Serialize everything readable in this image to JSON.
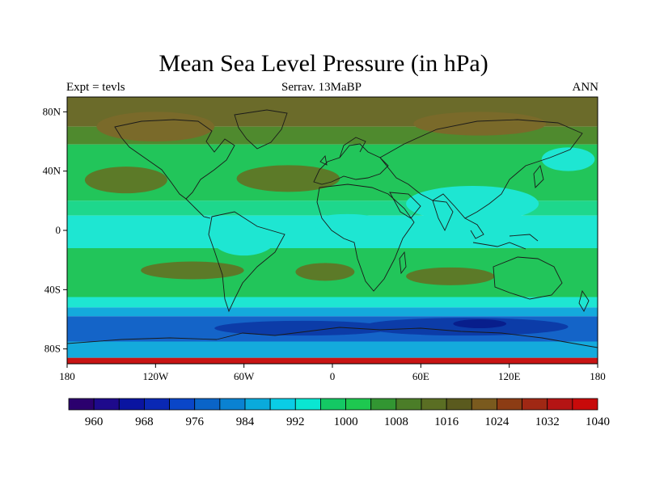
{
  "title": "Mean Sea Level Pressure (in hPa)",
  "subtitle_left": "Expt = tevls",
  "subtitle_center": "Serrav.  13MaBP",
  "subtitle_right": "ANN",
  "map": {
    "projection": "cylindrical-equidistant",
    "lon_range": [
      -180,
      180
    ],
    "lat_range": [
      -90,
      90
    ],
    "lon_ticks": [
      {
        "value": -180,
        "label": "180"
      },
      {
        "value": -120,
        "label": "120W"
      },
      {
        "value": -60,
        "label": "60W"
      },
      {
        "value": 0,
        "label": "0"
      },
      {
        "value": 60,
        "label": "60E"
      },
      {
        "value": 120,
        "label": "120E"
      },
      {
        "value": 180,
        "label": "180"
      }
    ],
    "lat_ticks": [
      {
        "value": 80,
        "label": "80N"
      },
      {
        "value": 40,
        "label": "40N"
      },
      {
        "value": 0,
        "label": "0"
      },
      {
        "value": -40,
        "label": "40S"
      },
      {
        "value": -80,
        "label": "80S"
      }
    ],
    "zonal_bands": [
      {
        "lat_top": 90,
        "lat_bottom": 70,
        "color": "#6b6b2a"
      },
      {
        "lat_top": 70,
        "lat_bottom": 58,
        "color": "#4f8a2e"
      },
      {
        "lat_top": 58,
        "lat_bottom": 20,
        "color": "#22c55a"
      },
      {
        "lat_top": 20,
        "lat_bottom": 10,
        "color": "#1ed78c"
      },
      {
        "lat_top": 10,
        "lat_bottom": -12,
        "color": "#1ee6d2"
      },
      {
        "lat_top": -12,
        "lat_bottom": -45,
        "color": "#22c55a"
      },
      {
        "lat_top": -45,
        "lat_bottom": -52,
        "color": "#1ee6d2"
      },
      {
        "lat_top": -52,
        "lat_bottom": -58,
        "color": "#14aadc"
      },
      {
        "lat_top": -58,
        "lat_bottom": -75,
        "color": "#1464c8"
      },
      {
        "lat_top": -75,
        "lat_bottom": -86,
        "color": "#14aadc"
      },
      {
        "lat_top": -86,
        "lat_bottom": -90,
        "color": "#c81414"
      }
    ],
    "highs": [
      {
        "lon": -140,
        "lat": 34,
        "rx": 28,
        "ry": 9,
        "color": "#5c7a28"
      },
      {
        "lon": -30,
        "lat": 35,
        "rx": 35,
        "ry": 9,
        "color": "#5c7a28"
      },
      {
        "lon": -95,
        "lat": -27,
        "rx": 35,
        "ry": 6,
        "color": "#5c7a28"
      },
      {
        "lon": -5,
        "lat": -28,
        "rx": 20,
        "ry": 6,
        "color": "#5c7a28"
      },
      {
        "lon": 80,
        "lat": -31,
        "rx": 30,
        "ry": 6,
        "color": "#5c7a28"
      },
      {
        "lon": -120,
        "lat": 70,
        "rx": 40,
        "ry": 10,
        "color": "#7a6a2a"
      },
      {
        "lon": 100,
        "lat": 72,
        "rx": 45,
        "ry": 8,
        "color": "#7a6a2a"
      }
    ],
    "lows": [
      {
        "lon": 90,
        "lat": -65,
        "rx": 70,
        "ry": 6,
        "color": "#0c3ca8"
      },
      {
        "lon": 100,
        "lat": -63,
        "rx": 18,
        "ry": 3,
        "color": "#081e8c"
      },
      {
        "lon": -20,
        "lat": -66,
        "rx": 60,
        "ry": 5,
        "color": "#0c3ca8"
      },
      {
        "lon": 10,
        "lat": 5,
        "rx": 25,
        "ry": 6,
        "color": "#1ee6d2"
      },
      {
        "lon": 95,
        "lat": 18,
        "rx": 45,
        "ry": 12,
        "color": "#1ee6d2"
      },
      {
        "lon": -60,
        "lat": -5,
        "rx": 22,
        "ry": 12,
        "color": "#1ee6d2"
      },
      {
        "lon": 160,
        "lat": 48,
        "rx": 18,
        "ry": 8,
        "color": "#1ee6d2"
      }
    ]
  },
  "colorbar": {
    "colors": [
      "#2b006e",
      "#1e0a8c",
      "#0a14a0",
      "#0a28b4",
      "#0a46c8",
      "#0a64c8",
      "#0a82d2",
      "#0aaadc",
      "#0acde6",
      "#0ae6d2",
      "#14c864",
      "#1ec850",
      "#329632",
      "#4b7d28",
      "#5a6e23",
      "#5a5a1e",
      "#7a5a1e",
      "#8c3c14",
      "#a02814",
      "#b41414",
      "#c80a0a"
    ],
    "labels": [
      {
        "index": 1,
        "text": "960"
      },
      {
        "index": 3,
        "text": "968"
      },
      {
        "index": 5,
        "text": "976"
      },
      {
        "index": 7,
        "text": "984"
      },
      {
        "index": 9,
        "text": "992"
      },
      {
        "index": 11,
        "text": "1000"
      },
      {
        "index": 13,
        "text": "1008"
      },
      {
        "index": 15,
        "text": "1016"
      },
      {
        "index": 17,
        "text": "1024"
      },
      {
        "index": 19,
        "text": "1032"
      },
      {
        "index": 21,
        "text": "1040"
      }
    ]
  }
}
